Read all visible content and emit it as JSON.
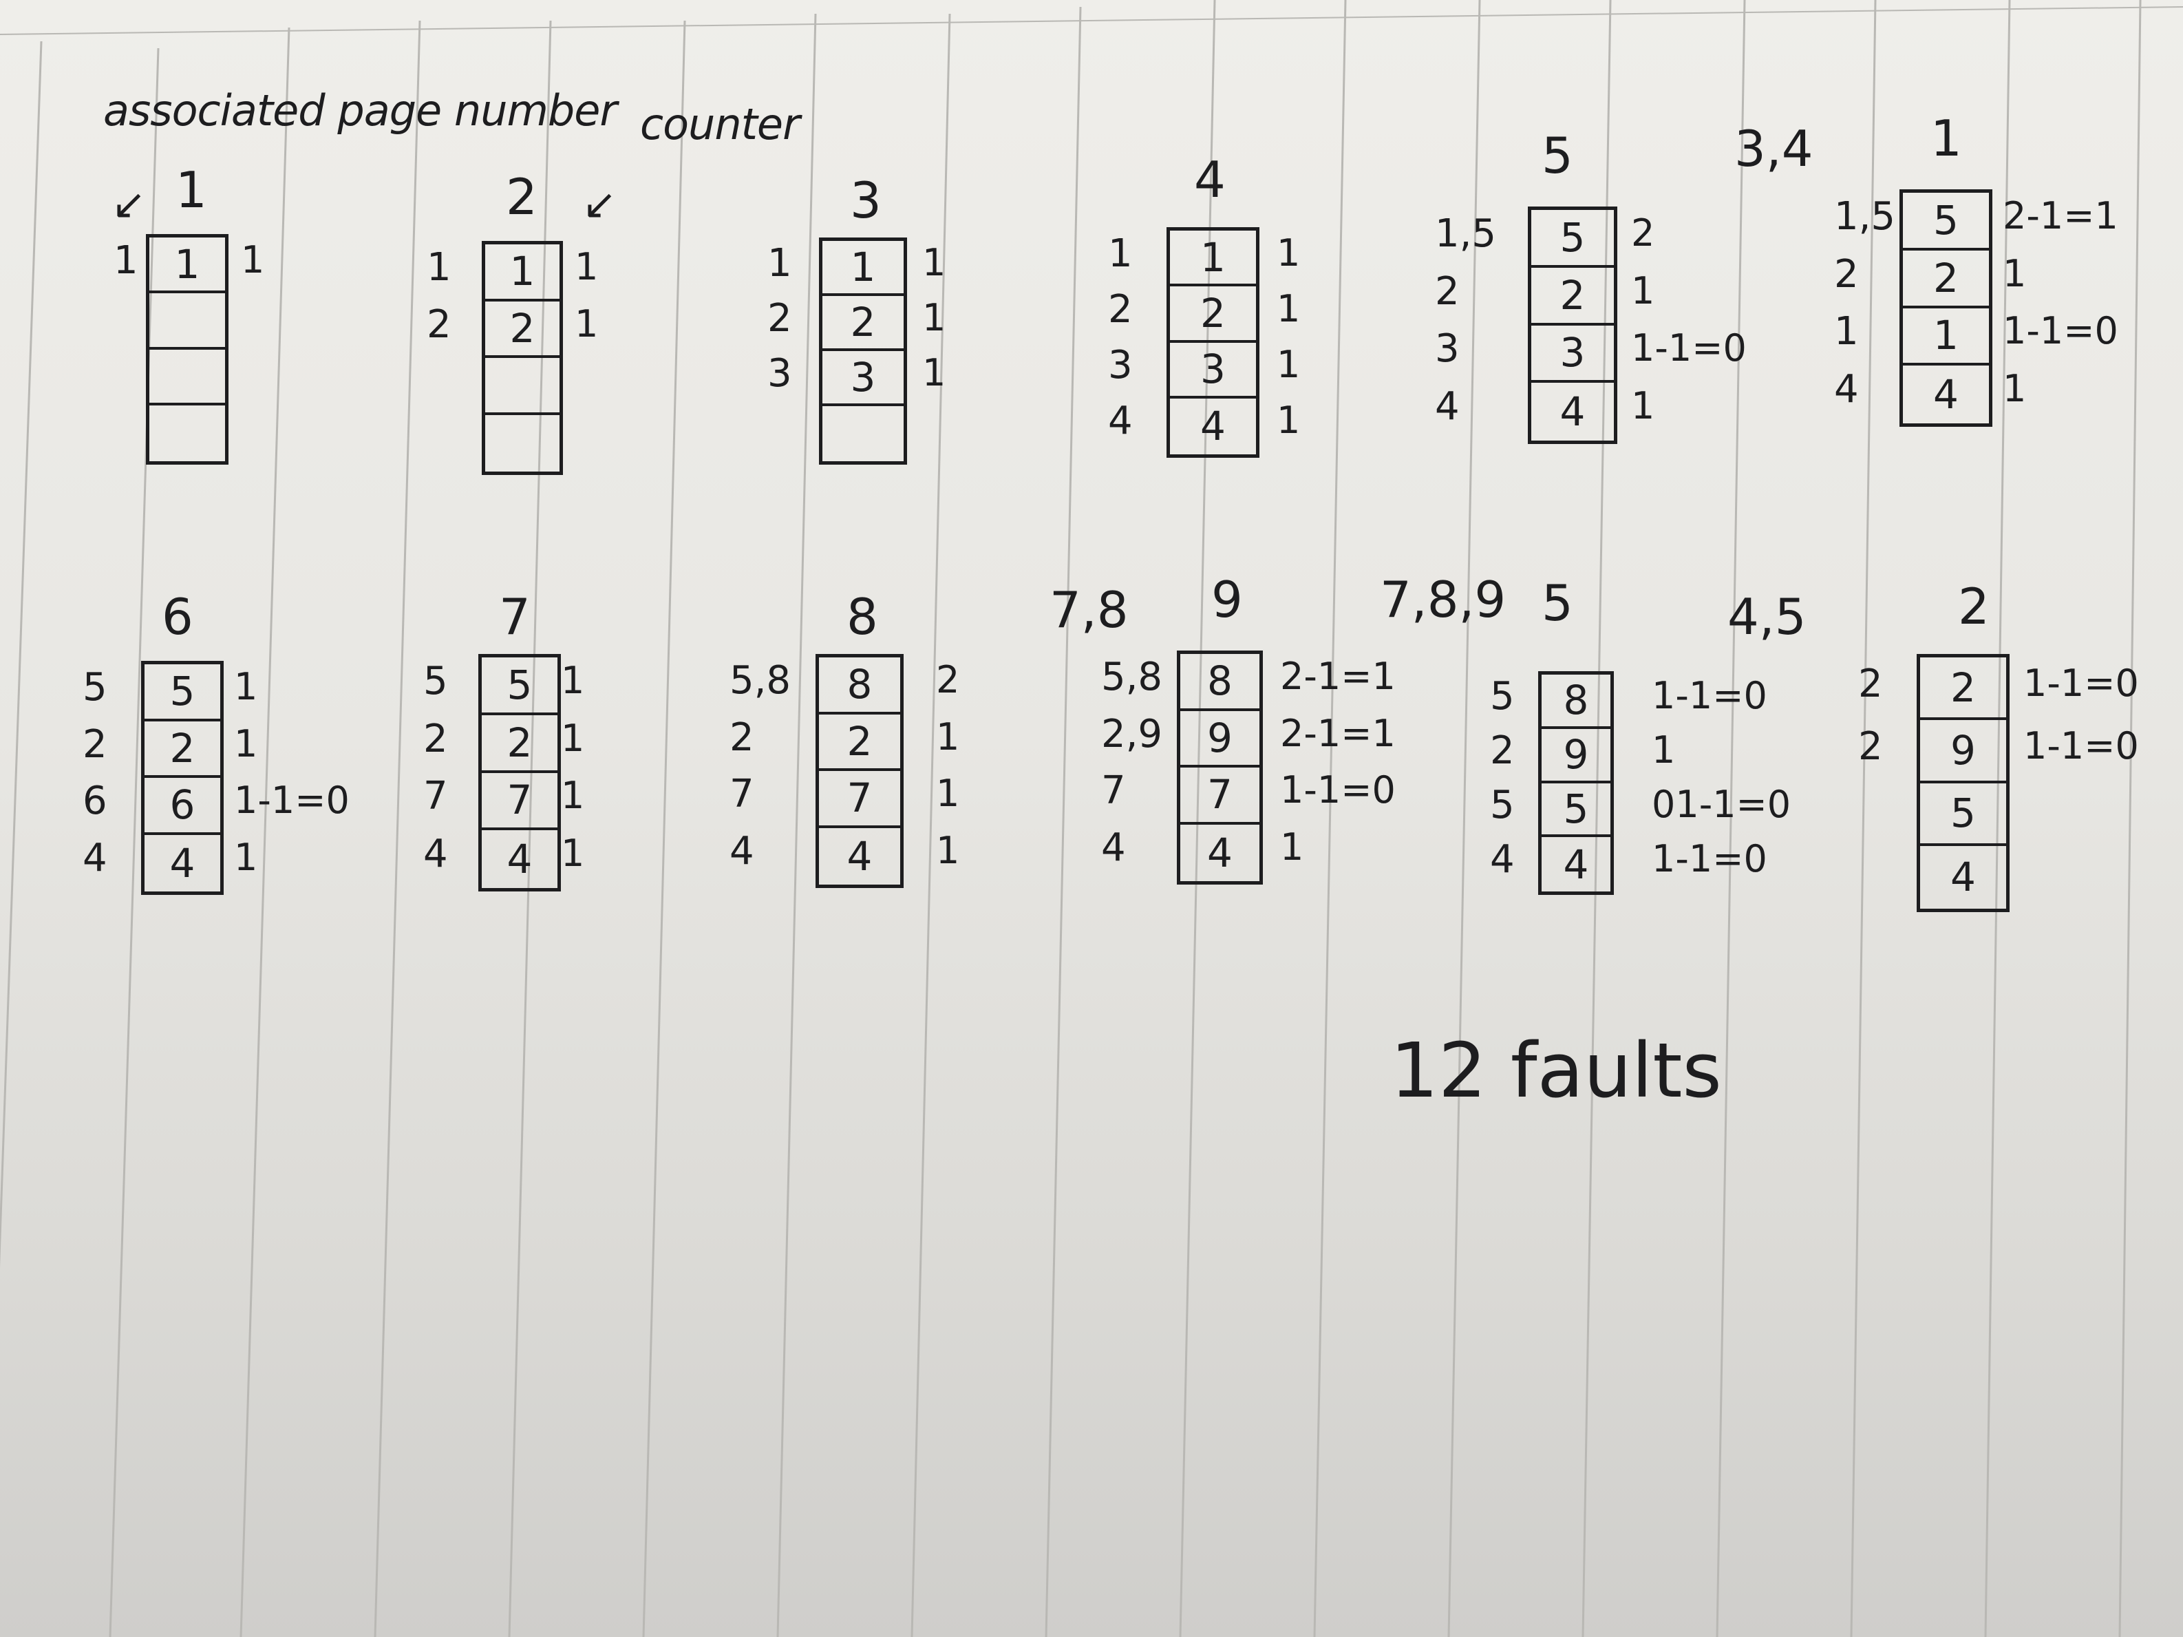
{
  "annotations": {
    "associated_page_number": "associated page number",
    "counter": "counter"
  },
  "row1": [
    {
      "header": "1",
      "labels": [
        "1",
        "",
        "",
        ""
      ],
      "cells": [
        "1",
        "",
        "",
        ""
      ],
      "counters": [
        "1",
        "",
        "",
        ""
      ]
    },
    {
      "header": "2",
      "labels": [
        "1",
        "2",
        "",
        ""
      ],
      "cells": [
        "1",
        "2",
        "",
        ""
      ],
      "counters": [
        "1",
        "1",
        "",
        ""
      ]
    },
    {
      "header": "3",
      "labels": [
        "1",
        "2",
        "3",
        ""
      ],
      "cells": [
        "1",
        "2",
        "3",
        ""
      ],
      "counters": [
        "1",
        "1",
        "1",
        ""
      ]
    },
    {
      "header": "4",
      "labels": [
        "1",
        "2",
        "3",
        "4"
      ],
      "cells": [
        "1",
        "2",
        "3",
        "4"
      ],
      "counters": [
        "1",
        "1",
        "1",
        "1"
      ]
    },
    {
      "header": "5",
      "labels": [
        "1,5",
        "2",
        "3",
        "4"
      ],
      "cells": [
        "5",
        "2",
        "3",
        "4"
      ],
      "counters": [
        "2",
        "1",
        "1-1=0",
        "1"
      ]
    },
    {
      "header": "1",
      "pre_header": "3,4",
      "labels": [
        "1,5",
        "2",
        "1",
        "4"
      ],
      "cells": [
        "5",
        "2",
        "1",
        "4"
      ],
      "counters": [
        "2-1=1",
        "1",
        "1-1=0",
        "1"
      ]
    }
  ],
  "row2": [
    {
      "header": "6",
      "labels": [
        "5",
        "2",
        "6",
        "4"
      ],
      "cells": [
        "5",
        "2",
        "6",
        "4"
      ],
      "counters": [
        "1",
        "1",
        "1-1=0",
        "1"
      ]
    },
    {
      "header": "7",
      "labels": [
        "5",
        "2",
        "7",
        "4"
      ],
      "cells": [
        "5",
        "2",
        "7",
        "4"
      ],
      "counters": [
        "1",
        "1",
        "1",
        "1"
      ]
    },
    {
      "header": "8",
      "labels": [
        "5,8",
        "2",
        "7",
        "4"
      ],
      "cells": [
        "8",
        "2",
        "7",
        "4"
      ],
      "counters": [
        "2",
        "1",
        "1",
        "1"
      ]
    },
    {
      "header": "9",
      "pre_header": "7,8",
      "labels": [
        "5,8",
        "2,9",
        "7",
        "4"
      ],
      "cells": [
        "8",
        "9",
        "7",
        "4"
      ],
      "counters": [
        "2-1=1",
        "2-1=1",
        "1-1=0",
        "1"
      ]
    },
    {
      "header": "5",
      "pre_header": "7,8,9",
      "labels": [
        "5",
        "2",
        "5",
        "4"
      ],
      "cells": [
        "8",
        "9",
        "5",
        "4"
      ],
      "counters": [
        "1-1=0",
        "1",
        "01-1=0",
        "1-1=0"
      ]
    },
    {
      "header": "2",
      "pre_header": "4,5",
      "labels": [
        "2",
        "2",
        "",
        ""
      ],
      "cells": [
        "2",
        "9",
        "5",
        "4"
      ],
      "counters": [
        "1-1=0",
        "1-1=0",
        "",
        ""
      ]
    }
  ],
  "summary": "12 faults",
  "colors": {
    "ink": "#1d1d1f",
    "paper": "#ecebe7",
    "rule": "#b9b8b4"
  }
}
